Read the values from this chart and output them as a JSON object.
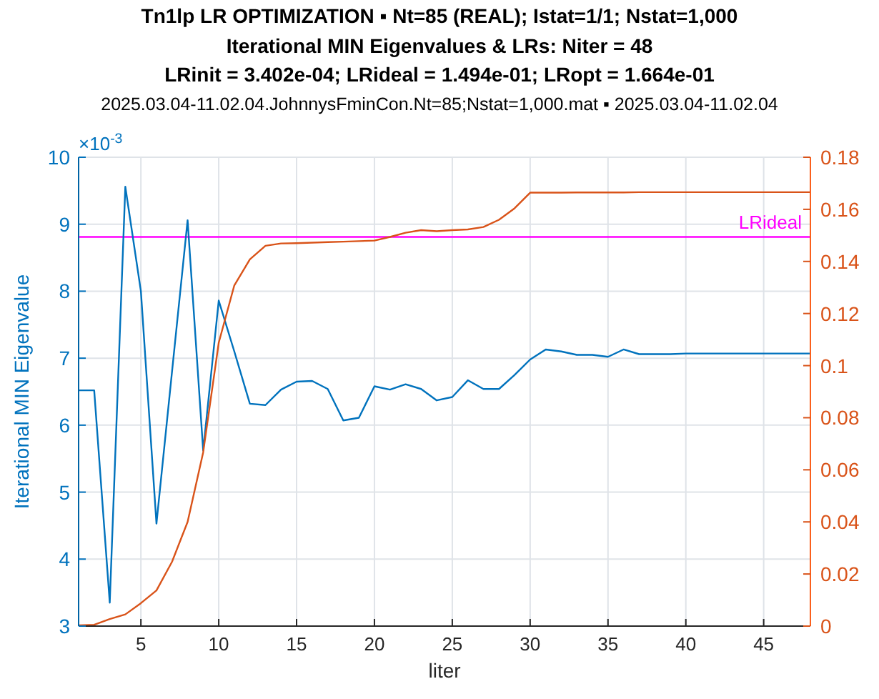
{
  "chart_data": {
    "type": "line",
    "title": "Tn1lp LR OPTIMIZATION ▪ Nt=85 (REAL); Istat=1/1; Nstat=1,000",
    "subtitle": "Iterational MIN Eigenvalues & LRs: Niter = 48\nLRinit = 3.402e-04; LRideal = 1.494e-01; LRopt = 1.664e-01",
    "annotations": [
      "2025.03.04-11.02.04.JohnnysFminCon.Nt=85;Nstat=1,000.mat ▪ 2025.03.04-11.02.04",
      "×10$^{-3}$"
    ],
    "xlabel": "liter",
    "ylabel": "Iterational MIN Eigenvalue",
    "x": [
      1,
      2,
      3,
      4,
      5,
      6,
      7,
      8,
      9,
      10,
      11,
      12,
      13,
      14,
      15,
      16,
      17,
      18,
      19,
      20,
      21,
      22,
      23,
      24,
      25,
      26,
      27,
      28,
      29,
      30,
      31,
      32,
      33,
      34,
      35,
      36,
      37,
      38,
      39,
      40,
      41,
      42,
      43,
      44,
      45,
      46,
      47,
      48
    ],
    "series": [
      {
        "color": "#0072bd",
        "values": [
          6.52,
          6.52,
          3.35,
          9.56,
          8.0,
          4.53,
          6.8,
          9.06,
          5.62,
          7.86,
          7.1,
          6.32,
          6.3,
          6.53,
          6.65,
          6.66,
          6.54,
          6.07,
          6.11,
          6.58,
          6.53,
          6.61,
          6.54,
          6.37,
          6.42,
          6.67,
          6.54,
          6.54,
          6.75,
          6.98,
          7.13,
          7.1,
          7.05,
          7.05,
          7.02,
          7.13,
          7.06,
          7.06,
          7.06,
          7.07,
          7.07,
          7.07,
          7.07,
          7.07,
          7.07,
          7.07,
          7.07,
          7.07
        ]
      },
      {
        "color": "#d95319",
        "axis": "y2",
        "values": [
          0.0003,
          0.0005,
          0.0027,
          0.0045,
          0.0088,
          0.0137,
          0.0247,
          0.04,
          0.0667,
          0.1088,
          0.1308,
          0.1408,
          0.146,
          0.1469,
          0.147,
          0.1472,
          0.1474,
          0.1476,
          0.1478,
          0.148,
          0.1494,
          0.151,
          0.152,
          0.1516,
          0.152,
          0.1523,
          0.1532,
          0.156,
          0.1604,
          0.1664,
          0.1664,
          0.1664,
          0.1665,
          0.1665,
          0.1665,
          0.1665,
          0.1666,
          0.1666,
          0.1666,
          0.1666,
          0.1666,
          0.1666,
          0.1666,
          0.1666,
          0.1666,
          0.1666,
          0.1666,
          0.1666
        ]
      }
    ],
    "xlim": [
      1,
      48
    ],
    "xticks": [
      5,
      10,
      15,
      20,
      25,
      30,
      35,
      40,
      45
    ],
    "ylim": [
      3,
      10
    ],
    "yticks": [
      3,
      4,
      5,
      6,
      7,
      8,
      9,
      10
    ],
    "y2lim": [
      0,
      0.18
    ],
    "y2ticks": [
      0,
      0.02,
      0.04,
      0.06,
      0.08,
      0.1,
      0.12,
      0.14,
      0.16,
      0.18
    ],
    "ref_lines": [
      {
        "axis": "y2",
        "value": 0.1494,
        "label": "LRideal",
        "color": "#ff00ff"
      }
    ],
    "grid": true
  }
}
